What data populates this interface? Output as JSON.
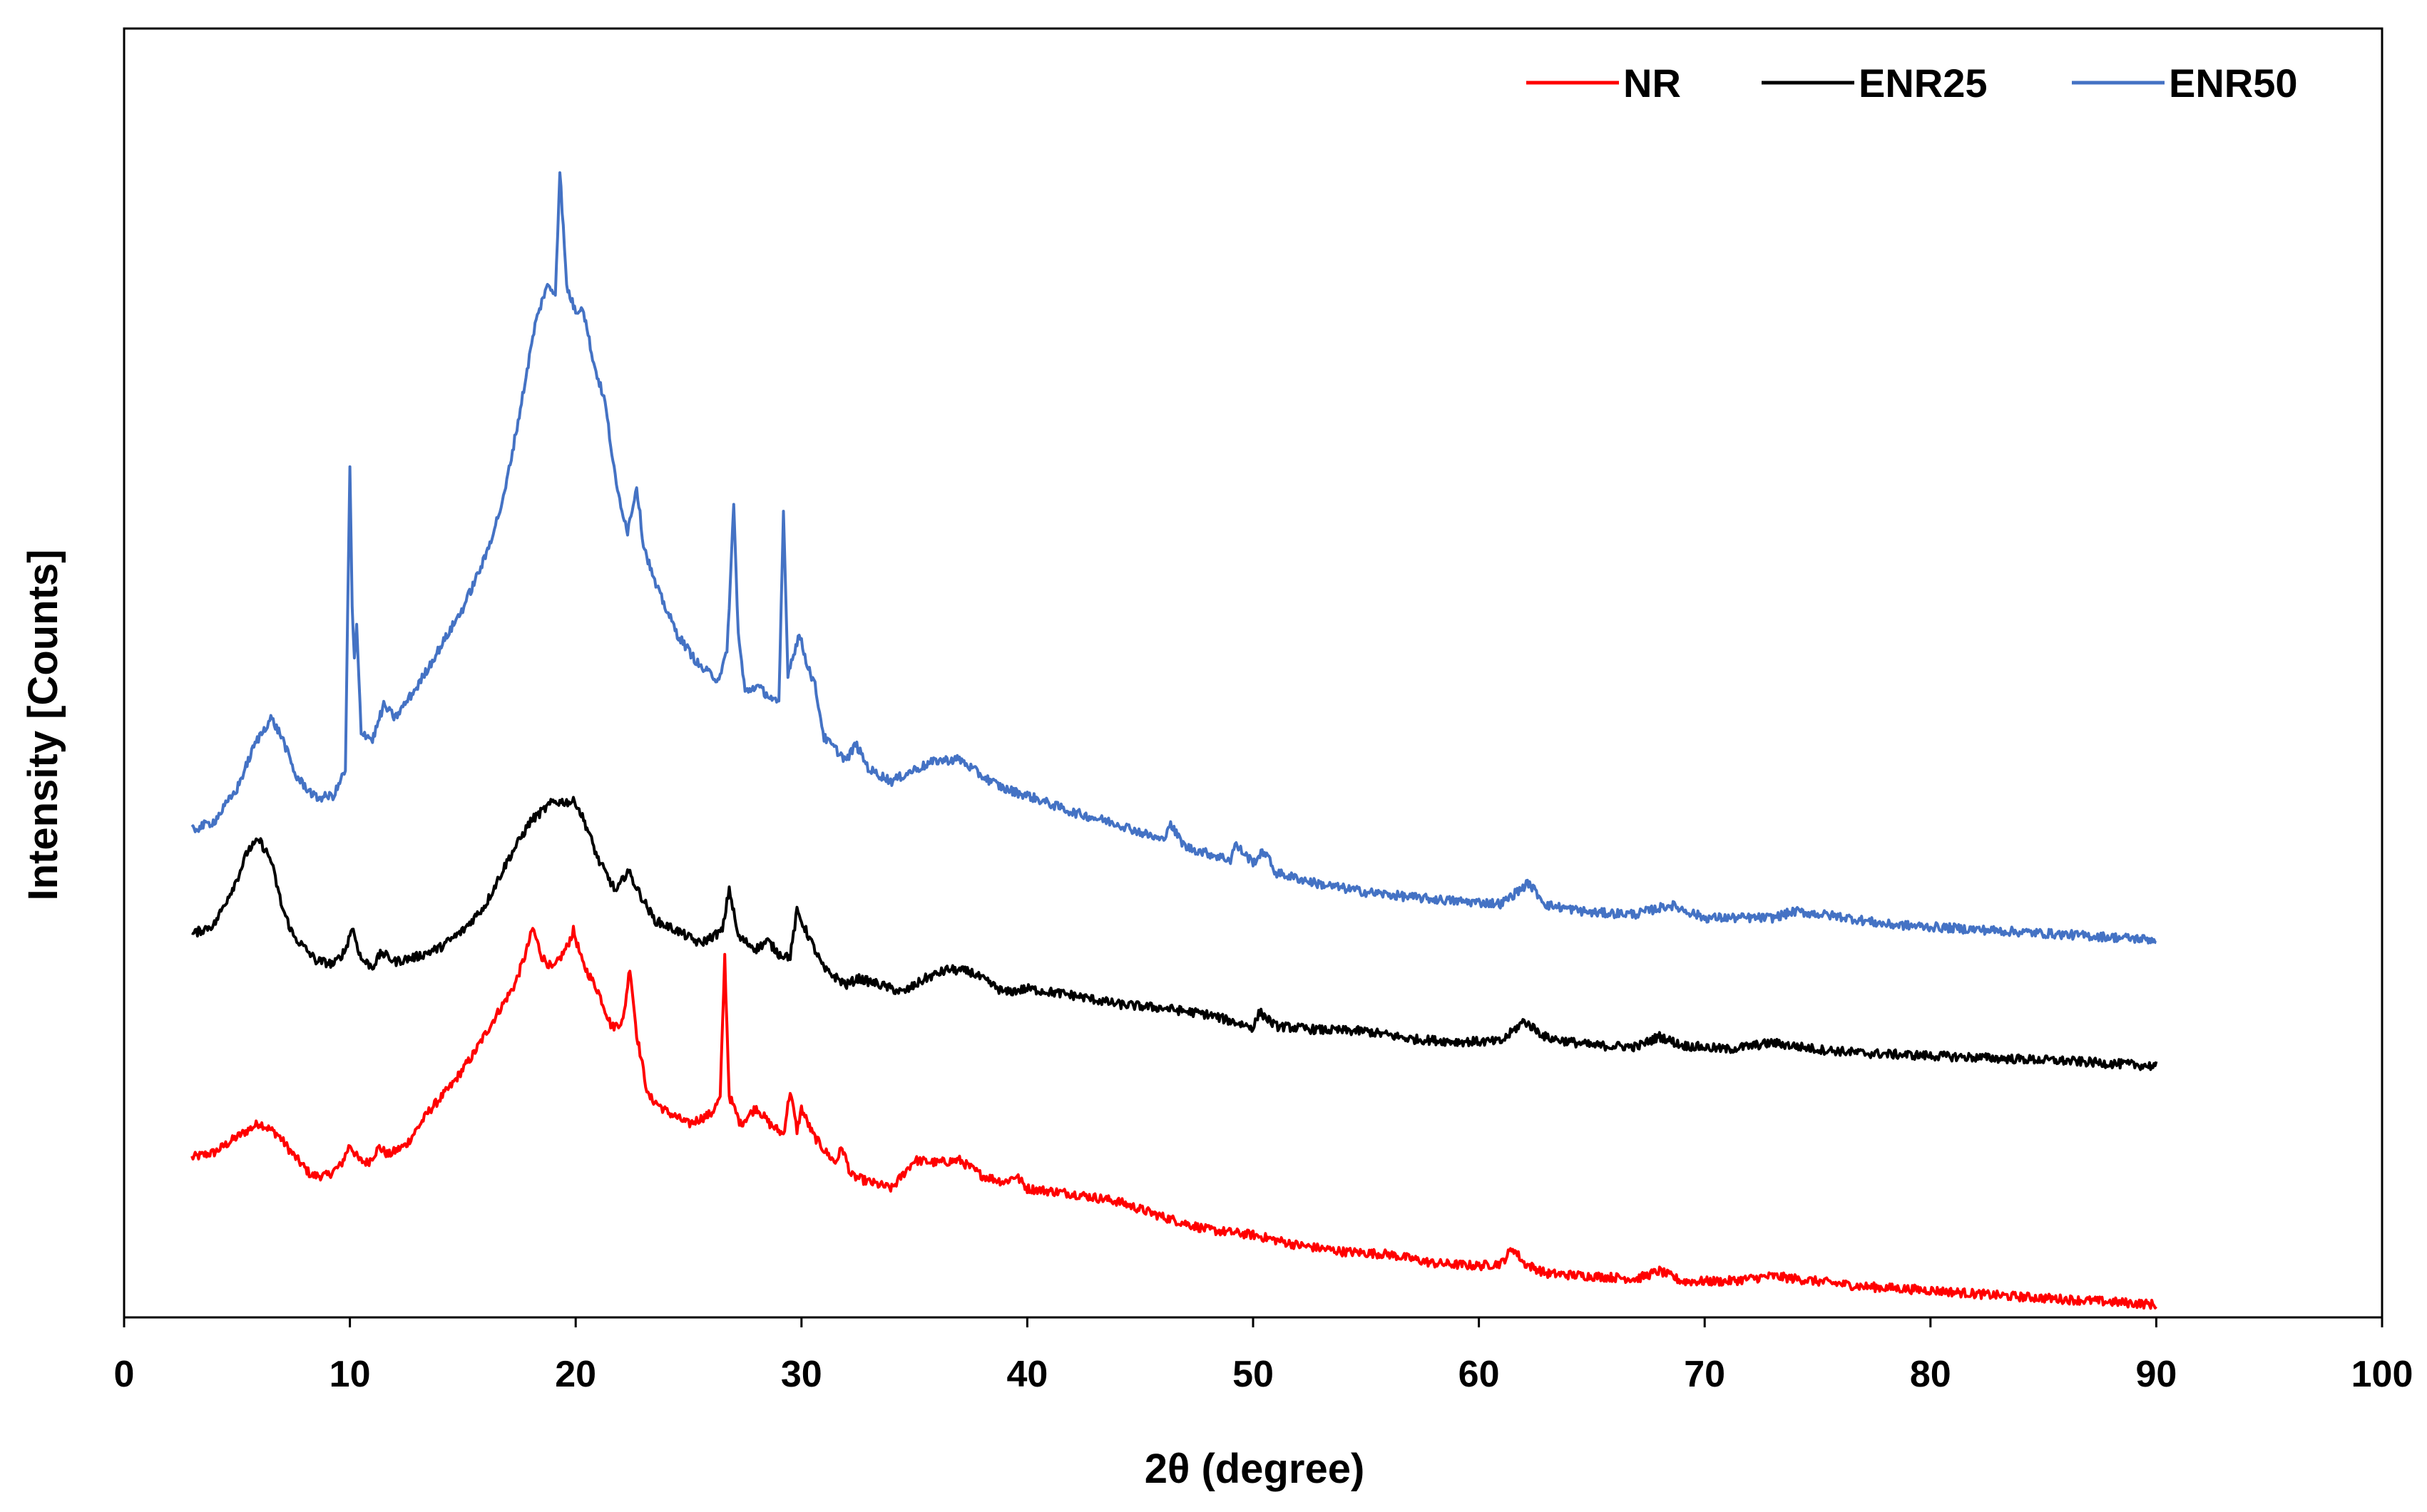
{
  "chart_data": {
    "type": "line",
    "title": "",
    "xlabel": "2θ (degree)",
    "ylabel": "Intensity [Counts]",
    "xlim": [
      0,
      100
    ],
    "ylim": [
      0,
      100
    ],
    "x_ticks": [
      "0",
      "10",
      "20",
      "30",
      "40",
      "50",
      "60",
      "70",
      "80",
      "90",
      "100"
    ],
    "y_ticks_shown": false,
    "grid": false,
    "legend_position": "top-right",
    "series": [
      {
        "name": "NR",
        "color": "#ff0000",
        "points": [
          [
            3,
            12.4
          ],
          [
            4,
            12.8
          ],
          [
            5,
            14.0
          ],
          [
            6,
            15.1
          ],
          [
            6.8,
            14.2
          ],
          [
            7.5,
            12.6
          ],
          [
            8.3,
            11.0
          ],
          [
            9,
            11.0
          ],
          [
            9.6,
            11.8
          ],
          [
            10,
            13.4
          ],
          [
            10.4,
            12.2
          ],
          [
            10.8,
            12.0
          ],
          [
            11.3,
            13.2
          ],
          [
            11.7,
            12.6
          ],
          [
            12.5,
            13.4
          ],
          [
            13.5,
            16.0
          ],
          [
            14.5,
            18.0
          ],
          [
            15.5,
            20.5
          ],
          [
            16.5,
            23.5
          ],
          [
            17.3,
            25.8
          ],
          [
            17.8,
            28.3
          ],
          [
            18.1,
            30.2
          ],
          [
            18.5,
            28.0
          ],
          [
            19,
            27.0
          ],
          [
            19.6,
            28.7
          ],
          [
            19.9,
            30.0
          ],
          [
            20.3,
            27.5
          ],
          [
            21,
            25.3
          ],
          [
            21.6,
            22.5
          ],
          [
            22.1,
            23.0
          ],
          [
            22.4,
            27.2
          ],
          [
            22.7,
            22.0
          ],
          [
            23.2,
            17.2
          ],
          [
            24,
            16.0
          ],
          [
            25,
            15.0
          ],
          [
            26,
            15.8
          ],
          [
            26.4,
            17.0
          ],
          [
            26.6,
            28.0
          ],
          [
            26.8,
            17.2
          ],
          [
            27.3,
            15.0
          ],
          [
            28,
            16.3
          ],
          [
            28.6,
            15.0
          ],
          [
            29.2,
            14.2
          ],
          [
            29.5,
            17.6
          ],
          [
            29.8,
            14.5
          ],
          [
            30,
            16.2
          ],
          [
            30.5,
            14.2
          ],
          [
            31,
            13.0
          ],
          [
            31.5,
            12.0
          ],
          [
            31.8,
            13.2
          ],
          [
            32.2,
            11.0
          ],
          [
            33,
            10.5
          ],
          [
            34,
            10.0
          ],
          [
            35,
            12.2
          ],
          [
            36,
            12.0
          ],
          [
            37,
            12.2
          ],
          [
            38,
            11.0
          ],
          [
            39,
            10.5
          ],
          [
            39.5,
            11.0
          ],
          [
            40,
            10.0
          ],
          [
            42,
            9.6
          ],
          [
            44,
            9.0
          ],
          [
            46,
            7.8
          ],
          [
            48,
            6.8
          ],
          [
            50,
            6.4
          ],
          [
            52,
            5.6
          ],
          [
            54,
            5.1
          ],
          [
            56,
            4.9
          ],
          [
            58,
            4.2
          ],
          [
            60,
            4.0
          ],
          [
            61,
            4.2
          ],
          [
            61.5,
            5.4
          ],
          [
            62,
            4.2
          ],
          [
            63,
            3.4
          ],
          [
            65,
            3.2
          ],
          [
            67,
            3.0
          ],
          [
            68,
            3.6
          ],
          [
            69,
            2.8
          ],
          [
            71,
            2.8
          ],
          [
            73,
            3.2
          ],
          [
            75,
            2.8
          ],
          [
            77,
            2.4
          ],
          [
            80,
            2.1
          ],
          [
            83,
            1.7
          ],
          [
            86,
            1.4
          ],
          [
            88,
            1.2
          ],
          [
            90,
            1.0
          ]
        ]
      },
      {
        "name": "ENR25",
        "color": "#000000",
        "points": [
          [
            3,
            29.7
          ],
          [
            4,
            30.5
          ],
          [
            5,
            34.0
          ],
          [
            5.5,
            36.3
          ],
          [
            6,
            37.0
          ],
          [
            6.5,
            35.5
          ],
          [
            7,
            31.8
          ],
          [
            7.5,
            29.6
          ],
          [
            8.5,
            27.7
          ],
          [
            9.3,
            27.4
          ],
          [
            9.8,
            28.5
          ],
          [
            10.1,
            30.3
          ],
          [
            10.5,
            27.8
          ],
          [
            11,
            27.2
          ],
          [
            11.4,
            28.3
          ],
          [
            12,
            27.6
          ],
          [
            13,
            28.0
          ],
          [
            14,
            28.7
          ],
          [
            15,
            30.0
          ],
          [
            16,
            32.0
          ],
          [
            17,
            35.5
          ],
          [
            18,
            38.5
          ],
          [
            19,
            40.0
          ],
          [
            20,
            40.0
          ],
          [
            20.5,
            38.0
          ],
          [
            21,
            35.5
          ],
          [
            21.8,
            33.0
          ],
          [
            22.3,
            34.7
          ],
          [
            22.8,
            33.0
          ],
          [
            23.5,
            30.8
          ],
          [
            24.5,
            30.0
          ],
          [
            25.5,
            29.0
          ],
          [
            26.5,
            30.0
          ],
          [
            26.8,
            33.3
          ],
          [
            27.2,
            29.5
          ],
          [
            28,
            28.6
          ],
          [
            28.5,
            29.2
          ],
          [
            29,
            28.2
          ],
          [
            29.5,
            28.0
          ],
          [
            29.8,
            31.5
          ],
          [
            30.2,
            30.0
          ],
          [
            31,
            27.0
          ],
          [
            32,
            25.8
          ],
          [
            32.5,
            26.3
          ],
          [
            33.5,
            25.8
          ],
          [
            34.5,
            25.2
          ],
          [
            35.5,
            26.3
          ],
          [
            36.5,
            27.0
          ],
          [
            37.5,
            26.8
          ],
          [
            39,
            25.2
          ],
          [
            40,
            25.5
          ],
          [
            42,
            25.0
          ],
          [
            44,
            24.3
          ],
          [
            46,
            24.0
          ],
          [
            48,
            23.5
          ],
          [
            50,
            22.5
          ],
          [
            50.3,
            23.7
          ],
          [
            51,
            22.6
          ],
          [
            53,
            22.3
          ],
          [
            55,
            22.2
          ],
          [
            57,
            21.6
          ],
          [
            59,
            21.4
          ],
          [
            61,
            21.4
          ],
          [
            62,
            23.0
          ],
          [
            63,
            21.7
          ],
          [
            65,
            21.1
          ],
          [
            67,
            21.0
          ],
          [
            68,
            21.8
          ],
          [
            69,
            21.1
          ],
          [
            71,
            20.8
          ],
          [
            73,
            21.3
          ],
          [
            75,
            20.8
          ],
          [
            77,
            20.5
          ],
          [
            80,
            20.3
          ],
          [
            83,
            20.1
          ],
          [
            86,
            19.9
          ],
          [
            88,
            19.7
          ],
          [
            90,
            19.5
          ]
        ]
      },
      {
        "name": "ENR50",
        "color": "#4472c4",
        "points": [
          [
            3,
            37.8
          ],
          [
            4,
            38.5
          ],
          [
            5,
            41.0
          ],
          [
            5.8,
            44.5
          ],
          [
            6.5,
            46.5
          ],
          [
            7,
            45.0
          ],
          [
            7.6,
            42.0
          ],
          [
            8.5,
            40.3
          ],
          [
            9.3,
            40.5
          ],
          [
            9.8,
            42.5
          ],
          [
            10,
            66.0
          ],
          [
            10.1,
            55.0
          ],
          [
            10.2,
            51.0
          ],
          [
            10.3,
            53.5
          ],
          [
            10.5,
            45.5
          ],
          [
            11,
            44.8
          ],
          [
            11.5,
            47.5
          ],
          [
            12,
            46.5
          ],
          [
            13,
            49.0
          ],
          [
            14,
            52.0
          ],
          [
            15,
            55.0
          ],
          [
            16,
            59.0
          ],
          [
            16.8,
            63.5
          ],
          [
            17.5,
            70.0
          ],
          [
            18.2,
            77.0
          ],
          [
            18.7,
            80.0
          ],
          [
            19.1,
            79.5
          ],
          [
            19.3,
            89.0
          ],
          [
            19.6,
            80.0
          ],
          [
            20,
            78.0
          ],
          [
            20.3,
            78.5
          ],
          [
            20.8,
            74.0
          ],
          [
            21.3,
            71.0
          ],
          [
            21.8,
            64.5
          ],
          [
            22.3,
            61.0
          ],
          [
            22.7,
            64.5
          ],
          [
            23,
            60.0
          ],
          [
            23.5,
            57.0
          ],
          [
            24.5,
            53.0
          ],
          [
            25.5,
            50.5
          ],
          [
            26.3,
            49.5
          ],
          [
            26.7,
            51.5
          ],
          [
            27,
            63.0
          ],
          [
            27.2,
            53.0
          ],
          [
            27.5,
            48.5
          ],
          [
            28,
            49.0
          ],
          [
            28.5,
            48.3
          ],
          [
            29,
            47.5
          ],
          [
            29.2,
            62.5
          ],
          [
            29.4,
            50.0
          ],
          [
            29.9,
            53.0
          ],
          [
            30.2,
            51.0
          ],
          [
            30.6,
            49.0
          ],
          [
            31,
            45.0
          ],
          [
            32,
            43.2
          ],
          [
            32.4,
            44.5
          ],
          [
            33,
            42.5
          ],
          [
            34,
            41.6
          ],
          [
            35,
            42.5
          ],
          [
            36,
            43.2
          ],
          [
            37,
            43.3
          ],
          [
            38,
            42.0
          ],
          [
            39,
            41.0
          ],
          [
            40,
            40.5
          ],
          [
            42,
            39.2
          ],
          [
            44,
            38.3
          ],
          [
            46,
            37.0
          ],
          [
            46.3,
            38.3
          ],
          [
            47,
            36.5
          ],
          [
            49,
            35.5
          ],
          [
            49.2,
            36.7
          ],
          [
            50,
            35.3
          ],
          [
            50.5,
            36.2
          ],
          [
            51,
            34.5
          ],
          [
            53,
            33.6
          ],
          [
            55,
            33.0
          ],
          [
            57,
            32.6
          ],
          [
            59,
            32.3
          ],
          [
            61,
            32.1
          ],
          [
            62.2,
            33.7
          ],
          [
            63,
            32.0
          ],
          [
            65,
            31.4
          ],
          [
            67,
            31.3
          ],
          [
            68.5,
            32.0
          ],
          [
            70,
            31.0
          ],
          [
            73,
            31.0
          ],
          [
            74,
            31.5
          ],
          [
            76,
            31.1
          ],
          [
            78,
            30.5
          ],
          [
            80,
            30.3
          ],
          [
            82,
            30.1
          ],
          [
            85,
            29.8
          ],
          [
            88,
            29.5
          ],
          [
            90,
            29.3
          ]
        ]
      }
    ]
  }
}
